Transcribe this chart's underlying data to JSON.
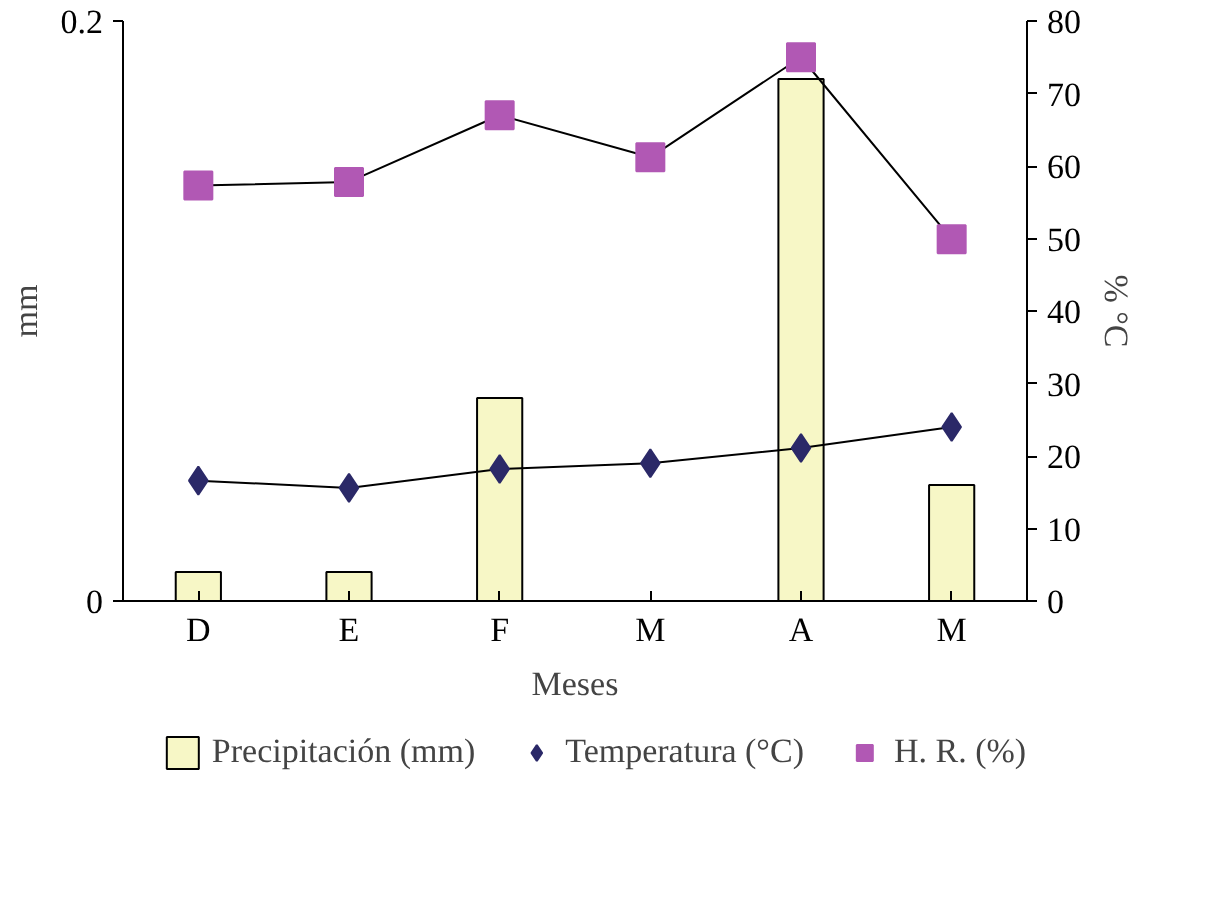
{
  "chart_data": {
    "type": "bar",
    "categories": [
      "D",
      "E",
      "F",
      "M",
      "A",
      "M"
    ],
    "series": [
      {
        "name": "Precipitación (mm)",
        "color": "#f7f7c6",
        "values": [
          0.01,
          0.01,
          0.07,
          null,
          0.18,
          0.04
        ]
      },
      {
        "name": "Temperatura (°C)",
        "type": "line",
        "axis": "y2",
        "marker": "diamond",
        "color": "#2b2968",
        "values": [
          16.6,
          15.6,
          18.2,
          19,
          21.1,
          24
        ]
      },
      {
        "name": "H. R. (%)",
        "type": "line",
        "axis": "y2",
        "marker": "square",
        "color": "#b158b4",
        "values": [
          57.3,
          57.8,
          67,
          61.2,
          75,
          49.9
        ]
      }
    ],
    "xlabel": "Meses",
    "ylabel": "mm",
    "y2label": "% °C",
    "ylim": [
      0,
      0.2
    ],
    "yticks": [
      0,
      0.2
    ],
    "y2lim": [
      0,
      80
    ],
    "y2ticks": [
      0,
      10,
      20,
      30,
      40,
      50,
      60,
      70,
      80
    ],
    "legend": "bottom",
    "grid": false
  }
}
